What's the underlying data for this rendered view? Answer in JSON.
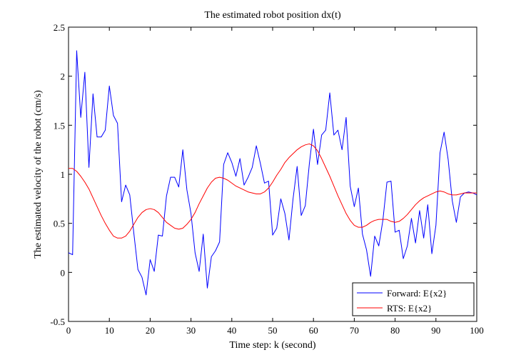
{
  "chart_data": {
    "type": "line",
    "title": "The estimated robot position dx(t)",
    "xlabel": "Time step: k (second)",
    "ylabel": "The estimated velocity of the robot (cm/s)",
    "xlim": [
      0,
      100
    ],
    "ylim": [
      -0.5,
      2.5
    ],
    "xticks": [
      0,
      10,
      20,
      30,
      40,
      50,
      60,
      70,
      80,
      90,
      100
    ],
    "yticks": [
      -0.5,
      0,
      0.5,
      1,
      1.5,
      2,
      2.5
    ],
    "grid": false,
    "legend_position": "bottom-right",
    "series": [
      {
        "name": "Forward: E{x2}",
        "color": "#0000ff",
        "x": [
          0,
          1,
          2,
          3,
          4,
          5,
          6,
          7,
          8,
          9,
          10,
          11,
          12,
          13,
          14,
          15,
          16,
          17,
          18,
          19,
          20,
          21,
          22,
          23,
          24,
          25,
          26,
          27,
          28,
          29,
          30,
          31,
          32,
          33,
          34,
          35,
          36,
          37,
          38,
          39,
          40,
          41,
          42,
          43,
          44,
          45,
          46,
          47,
          48,
          49,
          50,
          51,
          52,
          53,
          54,
          55,
          56,
          57,
          58,
          59,
          60,
          61,
          62,
          63,
          64,
          65,
          66,
          67,
          68,
          69,
          70,
          71,
          72,
          73,
          74,
          75,
          76,
          77,
          78,
          79,
          80,
          81,
          82,
          83,
          84,
          85,
          86,
          87,
          88,
          89,
          90,
          91,
          92,
          93,
          94,
          95,
          96,
          97,
          98,
          99,
          100
        ],
        "values": [
          0.2,
          0.18,
          2.26,
          1.58,
          2.04,
          1.07,
          1.82,
          1.38,
          1.38,
          1.45,
          1.9,
          1.6,
          1.52,
          0.72,
          0.89,
          0.79,
          0.4,
          0.03,
          -0.05,
          -0.23,
          0.13,
          0.01,
          0.38,
          0.37,
          0.78,
          0.97,
          0.97,
          0.87,
          1.25,
          0.84,
          0.6,
          0.2,
          0.01,
          0.39,
          -0.16,
          0.16,
          0.22,
          0.31,
          1.1,
          1.22,
          1.12,
          0.98,
          1.16,
          0.89,
          0.97,
          1.07,
          1.29,
          1.11,
          0.91,
          0.93,
          0.38,
          0.45,
          0.75,
          0.6,
          0.33,
          0.75,
          1.08,
          0.58,
          0.68,
          1.11,
          1.46,
          1.1,
          1.4,
          1.45,
          1.83,
          1.4,
          1.45,
          1.25,
          1.58,
          0.88,
          0.67,
          0.86,
          0.39,
          0.23,
          -0.04,
          0.37,
          0.27,
          0.53,
          0.92,
          0.93,
          0.41,
          0.43,
          0.14,
          0.27,
          0.55,
          0.3,
          0.63,
          0.35,
          0.69,
          0.19,
          0.48,
          1.22,
          1.43,
          1.15,
          0.73,
          0.51,
          0.77,
          0.81,
          0.82,
          0.81,
          0.79
        ]
      },
      {
        "name": "RTS: E{x2}",
        "color": "#ff0000",
        "x": [
          0,
          1,
          2,
          3,
          4,
          5,
          6,
          7,
          8,
          9,
          10,
          11,
          12,
          13,
          14,
          15,
          16,
          17,
          18,
          19,
          20,
          21,
          22,
          23,
          24,
          25,
          26,
          27,
          28,
          29,
          30,
          31,
          32,
          33,
          34,
          35,
          36,
          37,
          38,
          39,
          40,
          41,
          42,
          43,
          44,
          45,
          46,
          47,
          48,
          49,
          50,
          51,
          52,
          53,
          54,
          55,
          56,
          57,
          58,
          59,
          60,
          61,
          62,
          63,
          64,
          65,
          66,
          67,
          68,
          69,
          70,
          71,
          72,
          73,
          74,
          75,
          76,
          77,
          78,
          79,
          80,
          81,
          82,
          83,
          84,
          85,
          86,
          87,
          88,
          89,
          90,
          91,
          92,
          93,
          94,
          95,
          96,
          97,
          98,
          99,
          100
        ],
        "values": [
          1.06,
          1.06,
          1.03,
          0.98,
          0.92,
          0.85,
          0.76,
          0.67,
          0.58,
          0.5,
          0.43,
          0.37,
          0.35,
          0.35,
          0.37,
          0.42,
          0.49,
          0.56,
          0.61,
          0.64,
          0.65,
          0.64,
          0.61,
          0.56,
          0.51,
          0.48,
          0.45,
          0.44,
          0.45,
          0.49,
          0.54,
          0.61,
          0.7,
          0.78,
          0.86,
          0.92,
          0.96,
          0.97,
          0.96,
          0.94,
          0.91,
          0.88,
          0.86,
          0.84,
          0.82,
          0.81,
          0.8,
          0.8,
          0.82,
          0.86,
          0.92,
          0.99,
          1.05,
          1.12,
          1.17,
          1.21,
          1.25,
          1.28,
          1.3,
          1.31,
          1.29,
          1.24,
          1.16,
          1.07,
          0.98,
          0.88,
          0.78,
          0.69,
          0.6,
          0.53,
          0.48,
          0.46,
          0.46,
          0.48,
          0.51,
          0.53,
          0.54,
          0.54,
          0.54,
          0.52,
          0.51,
          0.52,
          0.55,
          0.59,
          0.64,
          0.69,
          0.73,
          0.76,
          0.78,
          0.8,
          0.82,
          0.83,
          0.82,
          0.8,
          0.79,
          0.79,
          0.8,
          0.81,
          0.81,
          0.81,
          0.81
        ]
      }
    ]
  }
}
